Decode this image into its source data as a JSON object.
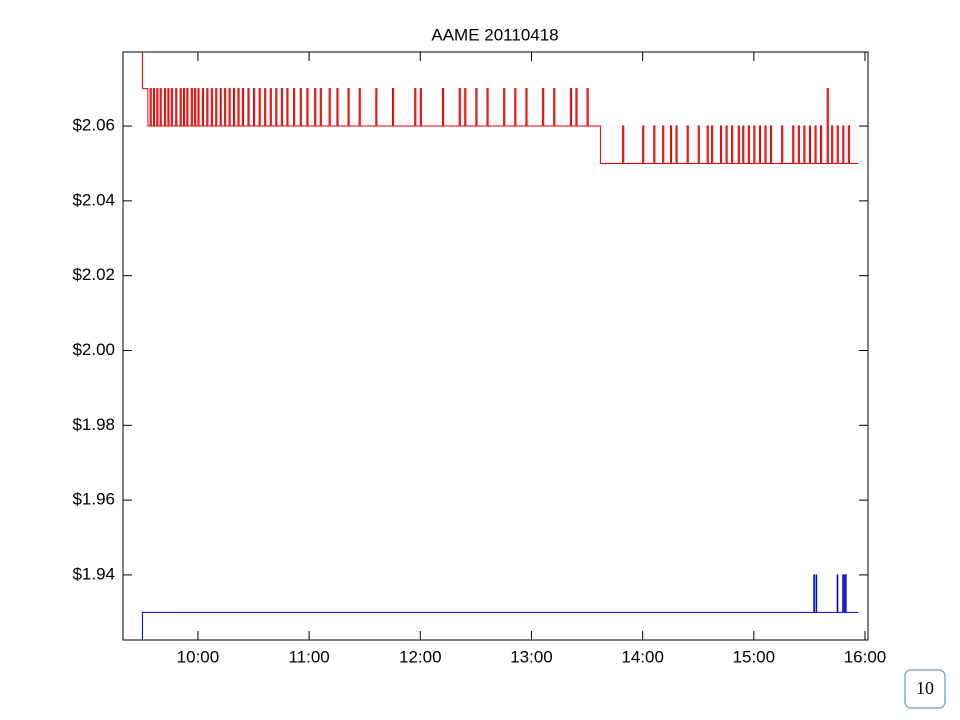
{
  "chart_data": {
    "type": "step",
    "title": "AAME 20110418",
    "xlim": [
      9.326,
      16.027
    ],
    "xticks": [
      {
        "value": 10,
        "label": "10:00"
      },
      {
        "value": 11,
        "label": "11:00"
      },
      {
        "value": 12,
        "label": "12:00"
      },
      {
        "value": 13,
        "label": "13:00"
      },
      {
        "value": 14,
        "label": "14:00"
      },
      {
        "value": 15,
        "label": "15:00"
      },
      {
        "value": 16,
        "label": "16:00"
      }
    ],
    "ylim": [
      1.9226,
      2.0798
    ],
    "yticks": [
      {
        "value": 1.94,
        "label": "$1.94"
      },
      {
        "value": 1.96,
        "label": "$1.96"
      },
      {
        "value": 1.98,
        "label": "$1.98"
      },
      {
        "value": 2.0,
        "label": "$2.00"
      },
      {
        "value": 2.02,
        "label": "$2.02"
      },
      {
        "value": 2.04,
        "label": "$2.04"
      },
      {
        "value": 2.06,
        "label": "$2.06"
      }
    ],
    "series": [
      {
        "color": "#e00000",
        "x": [
          9.5,
          9.501,
          9.55,
          9.57,
          9.58,
          9.6,
          9.61,
          9.63,
          9.64,
          9.66,
          9.67,
          9.7,
          9.71,
          9.73,
          9.74,
          9.76,
          9.77,
          9.8,
          9.81,
          9.84,
          9.85,
          9.87,
          9.88,
          9.9,
          9.91,
          9.94,
          9.95,
          9.97,
          9.98,
          10.0,
          10.01,
          10.04,
          10.05,
          10.08,
          10.09,
          10.12,
          10.13,
          10.16,
          10.17,
          10.2,
          10.21,
          10.24,
          10.25,
          10.28,
          10.29,
          10.32,
          10.33,
          10.36,
          10.37,
          10.4,
          10.41,
          10.45,
          10.46,
          10.5,
          10.51,
          10.55,
          10.56,
          10.6,
          10.61,
          10.65,
          10.66,
          10.7,
          10.71,
          10.75,
          10.76,
          10.8,
          10.81,
          10.86,
          10.87,
          10.92,
          10.93,
          10.98,
          10.99,
          11.05,
          11.06,
          11.1,
          11.11,
          11.18,
          11.19,
          11.25,
          11.26,
          11.35,
          11.36,
          11.45,
          11.46,
          11.6,
          11.61,
          11.75,
          11.76,
          11.95,
          11.96,
          12.0,
          12.01,
          12.2,
          12.21,
          12.35,
          12.36,
          12.4,
          12.41,
          12.5,
          12.51,
          12.6,
          12.61,
          12.75,
          12.76,
          12.85,
          12.86,
          12.95,
          12.96,
          13.1,
          13.11,
          13.2,
          13.21,
          13.35,
          13.36,
          13.4,
          13.41,
          13.5,
          13.51,
          13.62,
          13.82,
          13.83,
          14.0,
          14.01,
          14.1,
          14.11,
          14.18,
          14.19,
          14.25,
          14.26,
          14.3,
          14.31,
          14.4,
          14.41,
          14.5,
          14.51,
          14.58,
          14.59,
          14.62,
          14.63,
          14.7,
          14.71,
          14.75,
          14.76,
          14.8,
          14.81,
          14.86,
          14.87,
          14.9,
          14.91,
          14.95,
          14.96,
          15.0,
          15.01,
          15.05,
          15.06,
          15.1,
          15.11,
          15.15,
          15.16,
          15.25,
          15.26,
          15.35,
          15.36,
          15.4,
          15.41,
          15.45,
          15.46,
          15.5,
          15.51,
          15.55,
          15.56,
          15.6,
          15.61,
          15.66,
          15.67,
          15.7,
          15.71,
          15.75,
          15.76,
          15.8,
          15.81,
          15.85,
          15.86,
          15.94
        ],
        "values": [
          2.08,
          2.07,
          2.06,
          2.07,
          2.06,
          2.07,
          2.06,
          2.07,
          2.06,
          2.07,
          2.06,
          2.07,
          2.06,
          2.07,
          2.06,
          2.07,
          2.06,
          2.07,
          2.06,
          2.07,
          2.06,
          2.07,
          2.06,
          2.07,
          2.06,
          2.07,
          2.06,
          2.07,
          2.06,
          2.07,
          2.06,
          2.07,
          2.06,
          2.07,
          2.06,
          2.07,
          2.06,
          2.07,
          2.06,
          2.07,
          2.06,
          2.07,
          2.06,
          2.07,
          2.06,
          2.07,
          2.06,
          2.07,
          2.06,
          2.07,
          2.06,
          2.07,
          2.06,
          2.07,
          2.06,
          2.07,
          2.06,
          2.07,
          2.06,
          2.07,
          2.06,
          2.07,
          2.06,
          2.07,
          2.06,
          2.07,
          2.06,
          2.07,
          2.06,
          2.07,
          2.06,
          2.07,
          2.06,
          2.07,
          2.06,
          2.07,
          2.06,
          2.07,
          2.06,
          2.07,
          2.06,
          2.07,
          2.06,
          2.07,
          2.06,
          2.07,
          2.06,
          2.07,
          2.06,
          2.07,
          2.06,
          2.07,
          2.06,
          2.07,
          2.06,
          2.07,
          2.06,
          2.07,
          2.06,
          2.07,
          2.06,
          2.07,
          2.06,
          2.07,
          2.06,
          2.07,
          2.06,
          2.07,
          2.06,
          2.07,
          2.06,
          2.07,
          2.06,
          2.07,
          2.06,
          2.07,
          2.06,
          2.07,
          2.06,
          2.05,
          2.06,
          2.05,
          2.06,
          2.05,
          2.06,
          2.05,
          2.06,
          2.05,
          2.06,
          2.05,
          2.06,
          2.05,
          2.06,
          2.05,
          2.06,
          2.05,
          2.06,
          2.05,
          2.06,
          2.05,
          2.06,
          2.05,
          2.06,
          2.05,
          2.06,
          2.05,
          2.06,
          2.05,
          2.06,
          2.05,
          2.06,
          2.05,
          2.06,
          2.05,
          2.06,
          2.05,
          2.06,
          2.05,
          2.06,
          2.05,
          2.06,
          2.05,
          2.06,
          2.05,
          2.06,
          2.05,
          2.06,
          2.05,
          2.06,
          2.05,
          2.06,
          2.05,
          2.06,
          2.05,
          2.07,
          2.05,
          2.06,
          2.05,
          2.06,
          2.05,
          2.06,
          2.05,
          2.06,
          2.05,
          2.05
        ]
      },
      {
        "color": "#0000cc",
        "x": [
          9.5,
          9.501,
          15.54,
          15.545,
          15.56,
          15.565,
          15.75,
          15.755,
          15.8,
          15.81,
          15.82,
          15.83,
          15.94
        ],
        "values": [
          1.92,
          1.93,
          1.94,
          1.93,
          1.94,
          1.93,
          1.94,
          1.93,
          1.94,
          1.93,
          1.94,
          1.93,
          1.93
        ]
      }
    ]
  },
  "page_number": "10"
}
